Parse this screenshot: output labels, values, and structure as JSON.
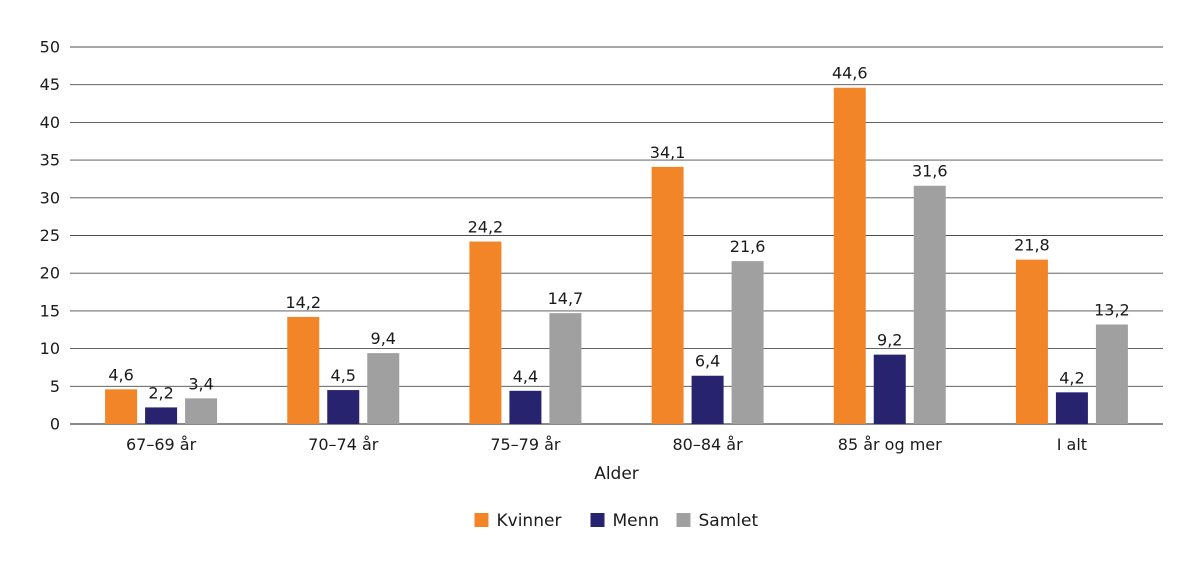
{
  "chart_data": {
    "type": "bar",
    "xlabel": "Alder",
    "ylabel": "",
    "ylim": [
      0,
      50
    ],
    "ytick_step": 5,
    "grid": true,
    "legend_position": "bottom",
    "categories": [
      "67–69 år",
      "70–74 år",
      "75–79 år",
      "80–84 år",
      "85 år og mer",
      "I alt"
    ],
    "series": [
      {
        "name": "Kvinner",
        "color": "#f28528",
        "values": [
          4.6,
          14.2,
          24.2,
          34.1,
          44.6,
          21.8
        ],
        "labels": [
          "4,6",
          "14,2",
          "24,2",
          "34,1",
          "44,6",
          "21,8"
        ]
      },
      {
        "name": "Menn",
        "color": "#27236f",
        "values": [
          2.2,
          4.5,
          4.4,
          6.4,
          9.2,
          4.2
        ],
        "labels": [
          "2,2",
          "4,5",
          "4,4",
          "6,4",
          "9,2",
          "4,2"
        ]
      },
      {
        "name": "Samlet",
        "color": "#a0a0a0",
        "values": [
          3.4,
          9.4,
          14.7,
          21.6,
          31.6,
          13.2
        ],
        "labels": [
          "3,4",
          "9,4",
          "14,7",
          "21,6",
          "31,6",
          "13,2"
        ]
      }
    ]
  }
}
